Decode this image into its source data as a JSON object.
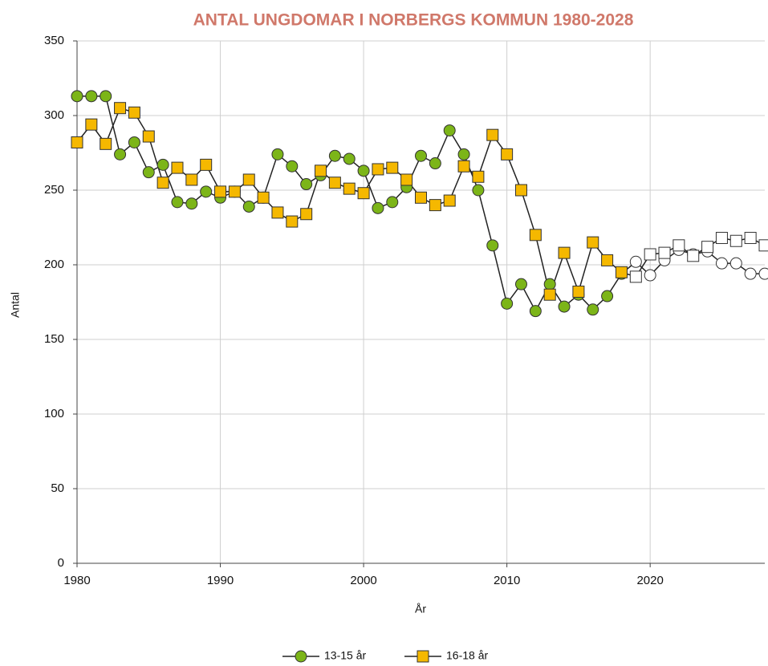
{
  "chart_data": {
    "type": "line",
    "title": "ANTAL UNGDOMAR I NORBERGS KOMMUN 1980-2028",
    "x_label": "År",
    "y_label": "Antal",
    "x": [
      1980,
      1981,
      1982,
      1983,
      1984,
      1985,
      1986,
      1987,
      1988,
      1989,
      1990,
      1991,
      1992,
      1993,
      1994,
      1995,
      1996,
      1997,
      1998,
      1999,
      2000,
      2001,
      2002,
      2003,
      2004,
      2005,
      2006,
      2007,
      2008,
      2009,
      2010,
      2011,
      2012,
      2013,
      2014,
      2015,
      2016,
      2017,
      2018,
      2019,
      2020,
      2021,
      2022,
      2023,
      2024,
      2025,
      2026,
      2027,
      2028
    ],
    "series": [
      {
        "name": "13-15 år",
        "color": "#7cb518",
        "marker": "circle",
        "values": [
          313,
          313,
          313,
          274,
          282,
          262,
          267,
          242,
          241,
          249,
          245,
          249,
          239,
          245,
          274,
          266,
          254,
          260,
          273,
          271,
          263,
          238,
          242,
          252,
          273,
          268,
          290,
          274,
          250,
          213,
          174,
          187,
          169,
          187,
          172,
          180,
          170,
          179,
          194,
          202,
          193,
          203,
          210,
          207,
          209,
          201,
          201,
          194,
          194
        ]
      },
      {
        "name": "16-18 år",
        "color": "#f5b800",
        "marker": "square",
        "values": [
          282,
          294,
          281,
          305,
          302,
          286,
          255,
          265,
          257,
          267,
          249,
          249,
          257,
          245,
          235,
          229,
          234,
          263,
          255,
          251,
          248,
          264,
          265,
          257,
          245,
          240,
          243,
          266,
          259,
          287,
          274,
          250,
          220,
          180,
          208,
          182,
          215,
          203,
          195,
          192,
          207,
          208,
          213,
          206,
          212,
          218,
          216,
          218,
          213
        ]
      }
    ],
    "forecast_from": 2019,
    "forecast_color": "#ffffff",
    "line_color": "#222222",
    "xlim": [
      1980,
      2028
    ],
    "xticks": [
      1980,
      1990,
      2000,
      2010,
      2020
    ],
    "ylim": [
      0,
      350
    ],
    "yticks": [
      0,
      50,
      100,
      150,
      200,
      250,
      300,
      350
    ],
    "grid": true,
    "legend": "bottom"
  }
}
